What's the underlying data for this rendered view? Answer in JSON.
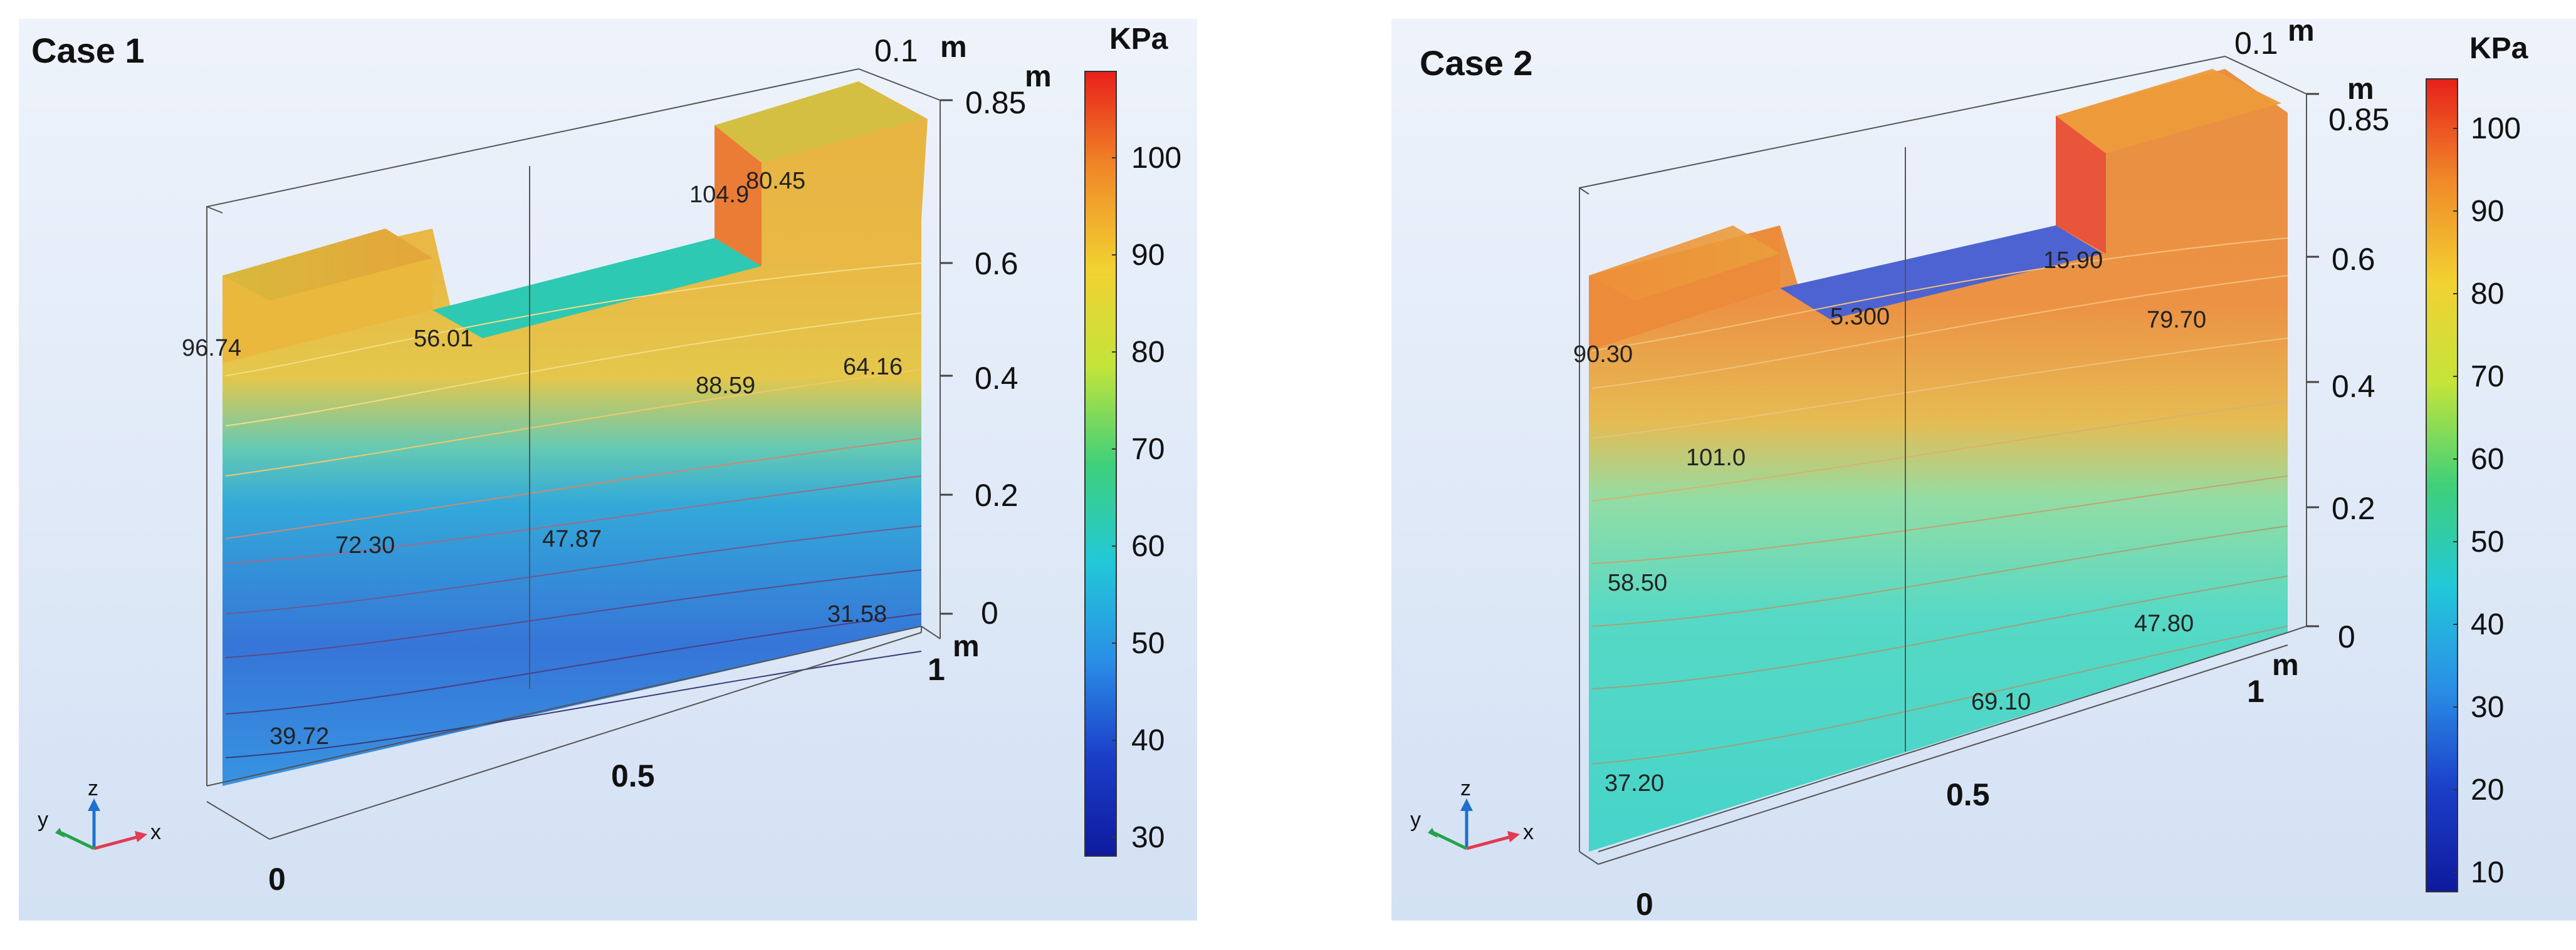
{
  "case1": {
    "title": "Case 1",
    "unit_top": "m",
    "axis_top_value": "0.1",
    "unit_right": "m",
    "unit_right_bottom": "m",
    "z_ticks": [
      "0.85",
      "0.6",
      "0.4",
      "0.2",
      "0"
    ],
    "x_ticks": [
      "1",
      "0.5",
      "0"
    ],
    "colorbar": {
      "title": "KPa",
      "ticks": [
        "100",
        "90",
        "80",
        "70",
        "60",
        "50",
        "40",
        "30"
      ],
      "colors": [
        "#e8211b",
        "#f08a28",
        "#f2d132",
        "#c4e43a",
        "#3fd07a",
        "#22c8d8",
        "#2a8fe6",
        "#1b3ec8",
        "#0e1a9e"
      ]
    },
    "contour_labels": [
      "80.45",
      "104.9",
      "56.01",
      "96.74",
      "88.59",
      "64.16",
      "72.30",
      "47.87",
      "31.58",
      "39.72"
    ]
  },
  "case2": {
    "title": "Case 2",
    "unit_top": "m",
    "axis_top_value": "0.1",
    "unit_right": "m",
    "unit_right_bottom": "m",
    "z_ticks": [
      "0.85",
      "0.6",
      "0.4",
      "0.2",
      "0"
    ],
    "x_ticks": [
      "1",
      "0.5",
      "0"
    ],
    "colorbar": {
      "title": "KPa",
      "ticks": [
        "100",
        "90",
        "80",
        "70",
        "60",
        "50",
        "40",
        "30",
        "20",
        "10"
      ],
      "colors": [
        "#e8211b",
        "#f08a28",
        "#f2d132",
        "#c4e43a",
        "#3fd07a",
        "#22c8d8",
        "#2a8fe6",
        "#1b3ec8",
        "#0e1a9e"
      ]
    },
    "contour_labels": [
      "15.90",
      "5.300",
      "90.30",
      "79.70",
      "101.0",
      "58.50",
      "47.80",
      "69.10",
      "37.20"
    ]
  },
  "triad": {
    "x": "x",
    "y": "y",
    "z": "z"
  }
}
